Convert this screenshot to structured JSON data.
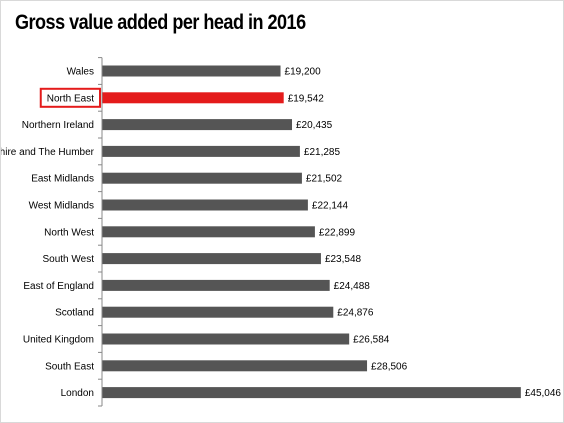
{
  "chart_data": {
    "type": "bar",
    "orientation": "horizontal",
    "title": "Gross value added per head in 2016",
    "xlabel": "",
    "ylabel": "",
    "categories": [
      "Wales",
      "North East",
      "Northern Ireland",
      "Yorkshire and The Humber",
      "East Midlands",
      "West Midlands",
      "North West",
      "South West",
      "East of England",
      "Scotland",
      "United Kingdom",
      "South East",
      "London"
    ],
    "values": [
      19200,
      19542,
      20435,
      21285,
      21502,
      22144,
      22899,
      23548,
      24488,
      24876,
      26584,
      28506,
      45046
    ],
    "value_labels": [
      "£19,200",
      "£19,542",
      "£20,435",
      "£21,285",
      "£21,502",
      "£22,144",
      "£22,899",
      "£23,548",
      "£24,488",
      "£24,876",
      "£26,584",
      "£28,506",
      "£45,046"
    ],
    "highlight": "North East",
    "xlim": [
      0,
      47000
    ],
    "grid": false,
    "legend": "none",
    "colors": {
      "bar": "#555555",
      "highlight_bar": "#e41b1b",
      "highlight_box": "#e41b1b",
      "axis": "#888888",
      "text": "#000000"
    }
  }
}
